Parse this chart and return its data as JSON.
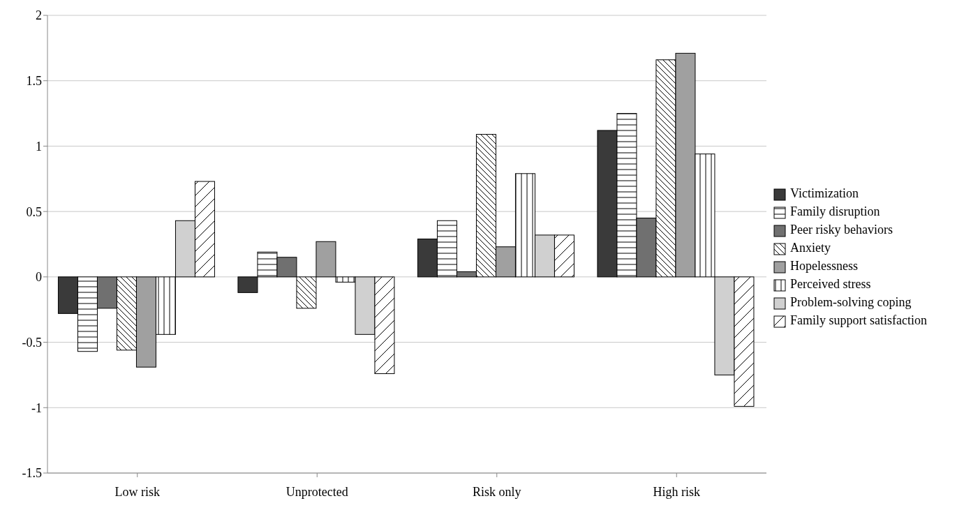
{
  "chart_data": {
    "type": "bar",
    "categories": [
      "Low risk",
      "Unprotected",
      "Risk only",
      "High risk"
    ],
    "series": [
      {
        "name": "Victimization",
        "color": "#3a3a3a",
        "values": [
          -0.28,
          -0.12,
          0.29,
          1.12
        ]
      },
      {
        "name": "Family disruption",
        "color": "#ffffff",
        "values": [
          -0.57,
          0.19,
          0.43,
          1.25
        ]
      },
      {
        "name": "Peer risky behaviors",
        "color": "#707070",
        "values": [
          -0.24,
          0.15,
          0.04,
          0.45
        ]
      },
      {
        "name": "Anxiety",
        "color": "#ffffff",
        "values": [
          -0.56,
          -0.24,
          1.09,
          1.66
        ]
      },
      {
        "name": "Hopelessness",
        "color": "#a0a0a0",
        "values": [
          -0.69,
          0.27,
          0.23,
          1.71
        ]
      },
      {
        "name": "Perceived stress",
        "color": "#ffffff",
        "values": [
          -0.44,
          -0.04,
          0.79,
          0.94
        ]
      },
      {
        "name": "Problem-solving coping",
        "color": "#d0d0d0",
        "values": [
          0.43,
          -0.44,
          0.32,
          -0.75
        ]
      },
      {
        "name": "Family support satisfaction",
        "color": "#ffffff",
        "values": [
          0.73,
          -0.74,
          0.32,
          -0.99
        ]
      }
    ],
    "ylim": [
      -1.5,
      2
    ],
    "yticks": [
      -1.5,
      -1,
      -0.5,
      0,
      0.5,
      1,
      1.5,
      2
    ],
    "grid": "y",
    "legend": "right"
  }
}
